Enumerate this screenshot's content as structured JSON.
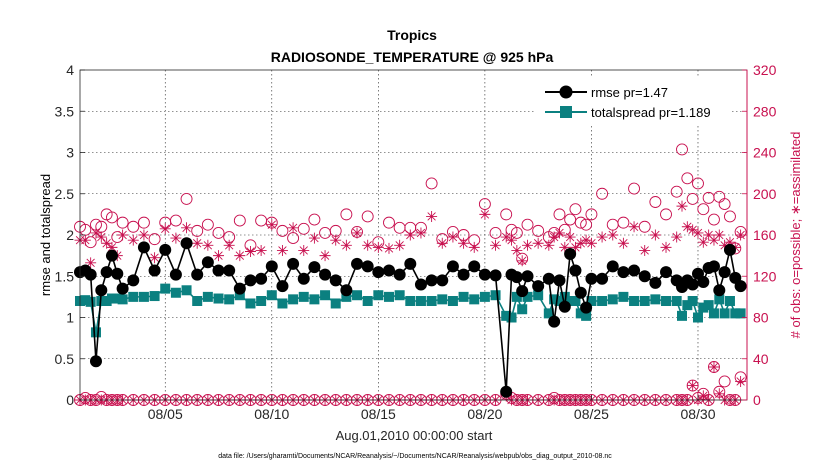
{
  "chart_data": {
    "type": "line",
    "title": "Tropics",
    "subtitle": "RADIOSONDE_TEMPERATURE @ 925 hPa",
    "xlabel": "Aug.01,2010 00:00:00 start",
    "ylabel_left": "rmse and totalspread",
    "ylabel_right": "# of obs: o=possible; ∗=assimilated",
    "footer": "data file: /Users/gharamti/Documents/NCAR/Reanalysis/~/Documents/NCAR/Reanalysis/webpub/obs_diag_output_2010-08.nc",
    "xlim": [
      1.0,
      32.3
    ],
    "ylim_left": [
      0,
      4
    ],
    "ylim_right": [
      0,
      320
    ],
    "x_ticks": [
      5,
      10,
      15,
      20,
      25,
      30
    ],
    "x_tick_labels": [
      "08/05",
      "08/10",
      "08/15",
      "08/20",
      "08/25",
      "08/30"
    ],
    "y_left_ticks": [
      0,
      0.5,
      1,
      1.5,
      2,
      2.5,
      3,
      3.5,
      4
    ],
    "y_left_tick_labels": [
      "0",
      "0.5",
      "1",
      "1.5",
      "2",
      "2.5",
      "3",
      "3.5",
      "4"
    ],
    "y_right_ticks": [
      0,
      40,
      80,
      120,
      160,
      200,
      240,
      280,
      320
    ],
    "y_right_tick_labels": [
      "0",
      "40",
      "80",
      "120",
      "160",
      "200",
      "240",
      "280",
      "320"
    ],
    "legend": {
      "position": "top-right",
      "entries": [
        "rmse pr=1.47",
        "totalspread pr=1.189"
      ]
    },
    "colors": {
      "rmse": "#000000",
      "totalspread": "#0b8080",
      "obs": "#c8104f"
    },
    "x": [
      1.0,
      1.25,
      1.5,
      1.75,
      2.0,
      2.25,
      2.5,
      2.75,
      3.0,
      3.5,
      4.0,
      4.5,
      5.0,
      5.5,
      6.0,
      6.5,
      7.0,
      7.5,
      8.0,
      8.5,
      9.0,
      9.5,
      10.0,
      10.5,
      11.0,
      11.5,
      12.0,
      12.5,
      13.0,
      13.5,
      14.0,
      14.5,
      15.0,
      15.5,
      16.0,
      16.5,
      17.0,
      17.5,
      18.0,
      18.5,
      19.0,
      19.5,
      20.0,
      20.5,
      21.0,
      21.25,
      21.5,
      21.75,
      22.0,
      22.5,
      23.0,
      23.25,
      23.5,
      23.75,
      24.0,
      24.25,
      24.5,
      24.75,
      25.0,
      25.5,
      26.0,
      26.5,
      27.0,
      27.5,
      28.0,
      28.5,
      29.0,
      29.25,
      29.5,
      29.75,
      30.0,
      30.25,
      30.5,
      30.75,
      31.0,
      31.25,
      31.5,
      31.75,
      32.0
    ],
    "series": [
      {
        "name": "rmse",
        "values": [
          1.55,
          1.57,
          1.52,
          0.47,
          1.33,
          1.55,
          1.75,
          1.53,
          1.35,
          1.45,
          1.85,
          1.57,
          1.82,
          1.52,
          1.9,
          1.52,
          1.67,
          1.57,
          1.57,
          1.35,
          1.45,
          1.47,
          1.62,
          1.38,
          1.65,
          1.47,
          1.61,
          1.52,
          1.45,
          1.33,
          1.65,
          1.62,
          1.55,
          1.57,
          1.52,
          1.65,
          1.4,
          1.45,
          1.45,
          1.62,
          1.52,
          1.62,
          1.52,
          1.51,
          0.1,
          1.52,
          1.49,
          1.32,
          1.5,
          1.38,
          1.47,
          0.95,
          1.45,
          1.13,
          1.77,
          1.57,
          1.3,
          1.12,
          1.47,
          1.47,
          1.62,
          1.55,
          1.57,
          1.5,
          1.42,
          1.55,
          1.45,
          1.37,
          1.45,
          1.4,
          1.53,
          1.43,
          1.6,
          1.62,
          1.33,
          1.55,
          1.82,
          1.48,
          1.38
        ]
      },
      {
        "name": "totalspread",
        "values": [
          1.2,
          1.21,
          1.19,
          0.82,
          1.2,
          1.2,
          1.23,
          1.23,
          1.22,
          1.25,
          1.25,
          1.26,
          1.35,
          1.3,
          1.33,
          1.2,
          1.25,
          1.23,
          1.22,
          1.27,
          1.17,
          1.2,
          1.27,
          1.17,
          1.22,
          1.25,
          1.22,
          1.27,
          1.17,
          1.25,
          1.27,
          1.2,
          1.27,
          1.25,
          1.27,
          1.2,
          1.2,
          1.2,
          1.22,
          1.2,
          1.25,
          1.22,
          1.25,
          1.27,
          1.02,
          1.0,
          1.25,
          1.1,
          1.25,
          1.27,
          1.05,
          1.22,
          1.2,
          1.25,
          1.2,
          1.2,
          1.05,
          1.02,
          1.2,
          1.2,
          1.22,
          1.25,
          1.2,
          1.2,
          1.22,
          1.2,
          1.2,
          1.02,
          1.15,
          1.2,
          1.0,
          1.12,
          1.15,
          1.05,
          1.22,
          1.05,
          1.2,
          1.05,
          1.05
        ]
      },
      {
        "name": "obs_possible",
        "values": [
          168,
          165,
          153,
          170,
          168,
          180,
          177,
          158,
          172,
          168,
          172,
          156,
          172,
          174,
          195,
          164,
          170,
          162,
          158,
          174,
          150,
          174,
          172,
          164,
          157,
          166,
          175,
          162,
          164,
          180,
          163,
          178,
          153,
          172,
          167,
          167,
          167,
          210,
          156,
          163,
          160,
          155,
          190,
          162,
          180,
          165,
          162,
          137,
          170,
          164,
          158,
          162,
          180,
          165,
          175,
          185,
          172,
          170,
          180,
          200,
          170,
          172,
          205,
          168,
          192,
          180,
          202,
          243,
          215,
          195,
          210,
          185,
          196,
          175,
          197,
          190,
          178,
          147,
          163
        ]
      },
      {
        "name": "obs_assimilated",
        "values": [
          155,
          155,
          133,
          162,
          158,
          152,
          148,
          140,
          160,
          155,
          160,
          138,
          166,
          157,
          167,
          152,
          150,
          140,
          150,
          140,
          144,
          145,
          170,
          145,
          167,
          145,
          157,
          140,
          155,
          150,
          162,
          150,
          148,
          147,
          150,
          160,
          162,
          178,
          152,
          158,
          152,
          148,
          180,
          150,
          158,
          155,
          145,
          135,
          150,
          152,
          150,
          158,
          162,
          148,
          158,
          148,
          152,
          155,
          152,
          158,
          160,
          152,
          168,
          145,
          160,
          148,
          158,
          188,
          168,
          165,
          162,
          153,
          160,
          155,
          160,
          150,
          153,
          148,
          160
        ]
      },
      {
        "name": "obs_low_possible",
        "values": [
          0,
          2,
          0,
          0,
          3,
          0,
          0,
          0,
          0,
          0,
          0,
          0,
          0,
          0,
          0,
          0,
          0,
          0,
          0,
          0,
          0,
          0,
          0,
          0,
          0,
          0,
          0,
          0,
          0,
          0,
          0,
          0,
          0,
          0,
          0,
          0,
          0,
          0,
          0,
          0,
          0,
          0,
          0,
          0,
          6,
          2,
          0,
          0,
          0,
          0,
          0,
          2,
          0,
          0,
          0,
          0,
          0,
          0,
          0,
          0,
          0,
          0,
          0,
          0,
          0,
          0,
          0,
          0,
          0,
          14,
          2,
          6,
          0,
          32,
          8,
          18,
          0,
          0,
          22
        ]
      },
      {
        "name": "obs_low_assimilated",
        "values": [
          0,
          0,
          0,
          0,
          0,
          0,
          0,
          0,
          0,
          0,
          0,
          0,
          0,
          0,
          0,
          0,
          0,
          0,
          0,
          0,
          0,
          0,
          0,
          0,
          0,
          0,
          0,
          0,
          0,
          0,
          0,
          0,
          0,
          0,
          0,
          0,
          0,
          0,
          0,
          0,
          0,
          0,
          0,
          0,
          4,
          0,
          0,
          0,
          0,
          0,
          0,
          0,
          0,
          0,
          0,
          0,
          0,
          0,
          0,
          0,
          0,
          0,
          0,
          0,
          0,
          0,
          0,
          0,
          0,
          14,
          0,
          4,
          0,
          32,
          6,
          0,
          0,
          0,
          18
        ]
      }
    ]
  }
}
